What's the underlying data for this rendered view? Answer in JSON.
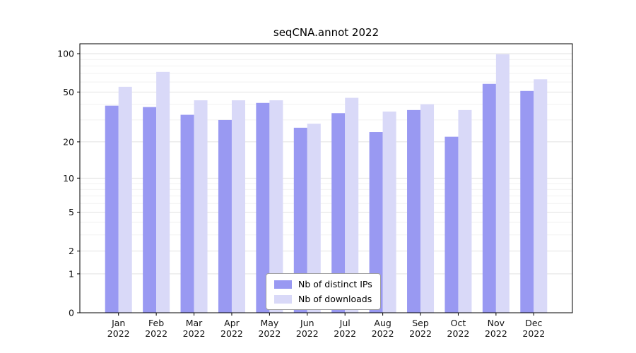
{
  "chart_data": {
    "type": "bar",
    "title": "seqCNA.annot 2022",
    "categories": [
      "Jan",
      "Feb",
      "Mar",
      "Apr",
      "May",
      "Jun",
      "Jul",
      "Aug",
      "Sep",
      "Oct",
      "Nov",
      "Dec"
    ],
    "x_second_line": "2022",
    "series": [
      {
        "name": "Nb of distinct IPs",
        "color": "#9999f2",
        "values": [
          39,
          38,
          33,
          30,
          41,
          26,
          34,
          24,
          36,
          22,
          58,
          51
        ]
      },
      {
        "name": "Nb of downloads",
        "color": "#d9d9f8",
        "values": [
          55,
          72,
          43,
          43,
          43,
          28,
          45,
          35,
          40,
          36,
          99,
          63
        ]
      }
    ],
    "y_ticks": [
      0,
      1,
      2,
      5,
      10,
      20,
      50,
      100
    ],
    "y_minor_gridlines": [
      3,
      4,
      6,
      7,
      8,
      9,
      30,
      40,
      60,
      70,
      80,
      90
    ],
    "scale": "log1p",
    "ylim": [
      0,
      100
    ],
    "xlabel": "",
    "ylabel": "",
    "grid": true,
    "legend_position": "bottom-center"
  }
}
